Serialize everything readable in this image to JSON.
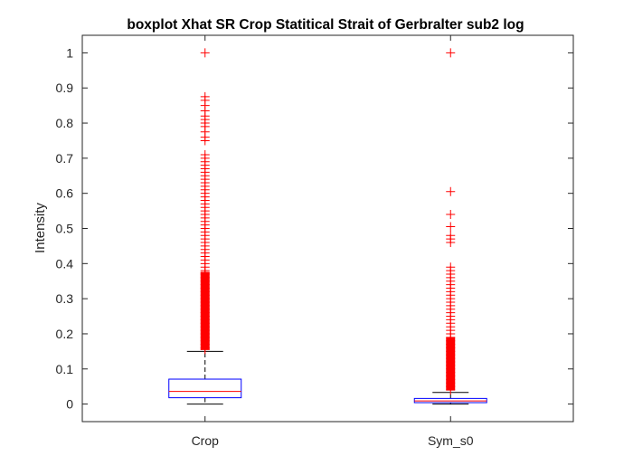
{
  "chart_data": {
    "type": "boxplot",
    "title": "boxplot Xhat SR Crop Statitical Strait of Gerbralter sub2 log",
    "xlabel": "",
    "ylabel": "Intensity",
    "categories": [
      "Crop",
      "Sym_s0"
    ],
    "ylim": [
      -0.05,
      1.05
    ],
    "yticks": [
      0,
      0.1,
      0.2,
      0.3,
      0.4,
      0.5,
      0.6,
      0.7,
      0.8,
      0.9,
      1
    ],
    "ytick_labels": [
      "0",
      "0.1",
      "0.2",
      "0.3",
      "0.4",
      "0.5",
      "0.6",
      "0.7",
      "0.8",
      "0.9",
      "1"
    ],
    "grid": false,
    "box_color": "#0000ff",
    "median_color": "#ff0000",
    "whisker_color": "#000000",
    "outlier_color": "#ff0000",
    "boxes": [
      {
        "category": "Crop",
        "whisker_low": 0.0,
        "q1": 0.018,
        "median": 0.036,
        "q3": 0.071,
        "whisker_high": 0.15,
        "outliers": [
          1.0,
          0.875,
          0.865,
          0.85,
          0.835,
          0.82,
          0.81,
          0.8,
          0.79,
          0.775,
          0.76,
          0.75,
          0.71,
          0.7,
          0.69,
          0.68,
          0.67,
          0.66,
          0.65,
          0.64,
          0.63,
          0.62,
          0.61,
          0.6,
          0.59,
          0.58,
          0.57,
          0.56,
          0.55,
          0.54,
          0.53,
          0.52,
          0.51,
          0.5,
          0.49,
          0.48,
          0.47,
          0.46,
          0.45,
          0.44,
          0.43,
          0.42,
          0.41,
          0.4,
          0.39,
          0.38,
          0.375,
          0.37,
          0.36,
          0.35,
          0.34,
          0.33,
          0.32,
          0.31,
          0.3,
          0.29,
          0.28,
          0.27,
          0.26,
          0.25,
          0.24,
          0.23,
          0.22,
          0.21,
          0.2,
          0.19,
          0.18,
          0.17,
          0.16,
          0.155
        ]
      },
      {
        "category": "Sym_s0",
        "whisker_low": 0.0,
        "q1": 0.004,
        "median": 0.009,
        "q3": 0.016,
        "whisker_high": 0.033,
        "outliers": [
          1.0,
          0.605,
          0.54,
          0.505,
          0.48,
          0.47,
          0.46,
          0.39,
          0.38,
          0.37,
          0.36,
          0.35,
          0.34,
          0.33,
          0.32,
          0.31,
          0.3,
          0.29,
          0.28,
          0.27,
          0.26,
          0.25,
          0.24,
          0.23,
          0.22,
          0.21,
          0.2,
          0.19,
          0.18,
          0.17,
          0.16,
          0.15,
          0.14,
          0.13,
          0.12,
          0.11,
          0.1,
          0.09,
          0.08,
          0.07,
          0.06,
          0.05,
          0.04
        ]
      }
    ]
  }
}
